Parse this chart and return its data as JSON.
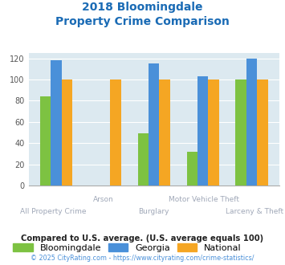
{
  "title_line1": "2018 Bloomingdale",
  "title_line2": "Property Crime Comparison",
  "title_color": "#1a6bb5",
  "categories": [
    "All Property Crime",
    "Arson",
    "Burglary",
    "Motor Vehicle Theft",
    "Larceny & Theft"
  ],
  "bloomingdale": [
    84,
    0,
    49,
    32,
    100
  ],
  "georgia": [
    118,
    0,
    115,
    103,
    120
  ],
  "national": [
    100,
    100,
    100,
    100,
    100
  ],
  "colors": {
    "bloomingdale": "#7dc242",
    "georgia": "#4a90d9",
    "national": "#f5a623"
  },
  "bg_color": "#dce9f0",
  "ylim": [
    0,
    125
  ],
  "yticks": [
    0,
    20,
    40,
    60,
    80,
    100,
    120
  ],
  "xlabel_color": "#a0a8b8",
  "legend_label_bloomingdale": "Bloomingdale",
  "legend_label_georgia": "Georgia",
  "legend_label_national": "National",
  "footnote1": "Compared to U.S. average. (U.S. average equals 100)",
  "footnote2": "© 2025 CityRating.com - https://www.cityrating.com/crime-statistics/",
  "footnote1_color": "#222222",
  "footnote2_color": "#4a90d9",
  "bar_width": 0.22
}
